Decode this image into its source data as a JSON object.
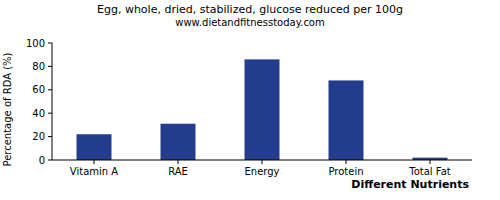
{
  "chart_data": {
    "type": "bar",
    "title": "Egg, whole, dried, stabilized, glucose reduced per 100g",
    "subtitle": "www.dietandfitnesstoday.com",
    "x_label": "Different Nutrients",
    "y_label": "Percentage of RDA (%)",
    "categories": [
      "Vitamin A",
      "RAE",
      "Energy",
      "Protein",
      "Total Fat"
    ],
    "values": [
      22,
      31,
      86,
      68,
      2
    ],
    "color": "#233c8c",
    "ylim": [
      0,
      100
    ],
    "yticks": [
      0,
      20,
      40,
      60,
      80,
      100
    ],
    "grid": false
  }
}
